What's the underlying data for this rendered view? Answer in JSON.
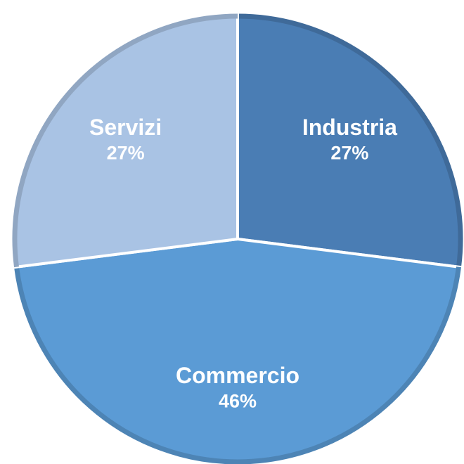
{
  "chart_data": {
    "type": "pie",
    "categories": [
      "Industria",
      "Commercio",
      "Servizi"
    ],
    "values": [
      27,
      46,
      27
    ],
    "value_labels": [
      "27%",
      "46%",
      "27%"
    ],
    "colors": [
      "#4a7db4",
      "#5b9bd5",
      "#a9c3e4"
    ],
    "start_angle": 0,
    "direction": "clockwise"
  }
}
